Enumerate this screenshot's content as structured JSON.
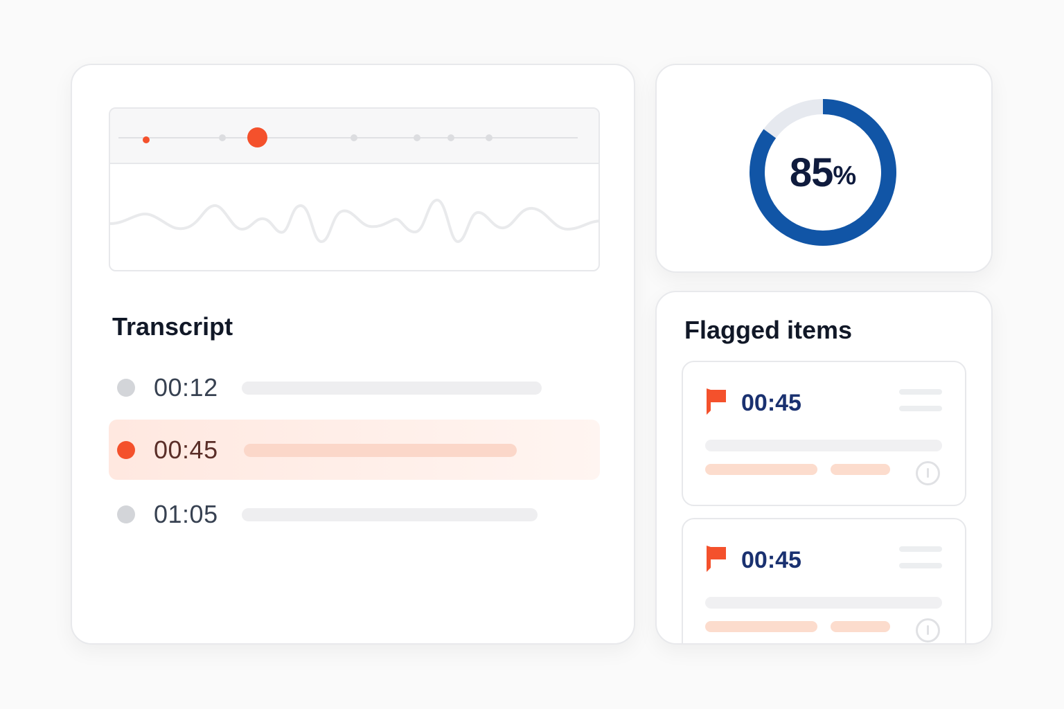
{
  "transcript": {
    "title": "Transcript",
    "rows": [
      {
        "time": "00:12",
        "active": false
      },
      {
        "time": "00:45",
        "active": true
      },
      {
        "time": "01:05",
        "active": false
      }
    ]
  },
  "score": {
    "value": 85,
    "number_text": "85",
    "percent_sign": "%",
    "ring_color": "#1155a6",
    "track_color": "#e6e9ef"
  },
  "flagged": {
    "title": "Flagged items",
    "items": [
      {
        "time": "00:45"
      },
      {
        "time": "00:45"
      }
    ]
  },
  "colors": {
    "accent": "#f4512c",
    "text_dark": "#111827",
    "navy": "#1a3170"
  },
  "icons": {
    "flag": "flag-icon",
    "info": "info-icon",
    "playhead": "playhead-marker"
  }
}
